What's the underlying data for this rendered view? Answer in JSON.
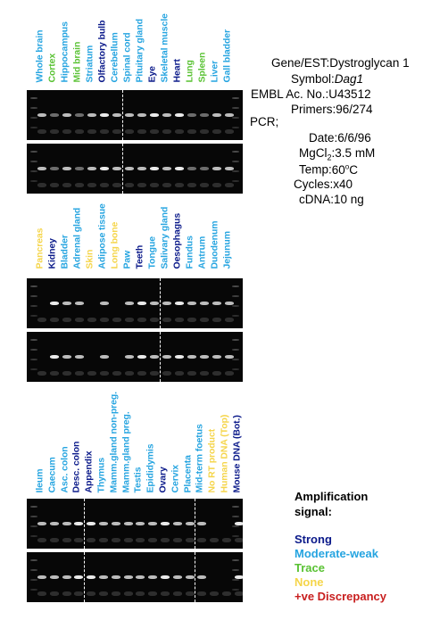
{
  "colors": {
    "strong": "#0b1a8a",
    "moderate_weak": "#25a4e0",
    "trace": "#59c233",
    "none": "#f5d54a",
    "discrepancy": "#c81e1e"
  },
  "gene_info": {
    "gene_label": "Gene/EST:",
    "gene_value": "Dystroglycan 1",
    "symbol_label": "Symbol:",
    "symbol_value": "Dag1",
    "embl_label": "EMBL Ac. No.:",
    "embl_value": "U43512",
    "primers_label": "Primers:",
    "primers_value": "96/274",
    "pcr_label": "PCR;",
    "date_label": "Date:",
    "date_value": "6/6/96",
    "mgcl_label_pre": "MgCl",
    "mgcl_label_sub": "2",
    "mgcl_label_post": ":",
    "mgcl_value": "3.5 mM",
    "temp_label": "Temp:",
    "temp_value_pre": "60",
    "temp_value_sup": "o",
    "temp_value_post": "C",
    "cycles_label": "Cycles:",
    "cycles_value": "x40",
    "cdna_label": "cDNA:",
    "cdna_value": "10 ng"
  },
  "legend": {
    "title_line1": "Amplification",
    "title_line2": "signal:",
    "strong": "Strong",
    "moderate_weak": "Moderate-weak",
    "trace": "Trace",
    "none": "None",
    "discrepancy": "+ve Discrepancy"
  },
  "panels": [
    {
      "tissues": [
        {
          "name": "Whole brain",
          "signal": "moderate_weak"
        },
        {
          "name": "Cortex",
          "signal": "trace"
        },
        {
          "name": "Hippocampus",
          "signal": "moderate_weak"
        },
        {
          "name": "Mid brain",
          "signal": "trace"
        },
        {
          "name": "Striatum",
          "signal": "moderate_weak"
        },
        {
          "name": "Olfactory bulb",
          "signal": "strong"
        },
        {
          "name": "Cerebellum",
          "signal": "moderate_weak"
        },
        {
          "name": "Spinal cord",
          "signal": "moderate_weak"
        },
        {
          "name": "Pituitary gland",
          "signal": "moderate_weak"
        },
        {
          "name": "Eye",
          "signal": "strong"
        },
        {
          "name": "Skeletal muscle",
          "signal": "moderate_weak"
        },
        {
          "name": "Heart",
          "signal": "strong"
        },
        {
          "name": "Lung",
          "signal": "trace"
        },
        {
          "name": "Spleen",
          "signal": "trace"
        },
        {
          "name": "Liver",
          "signal": "moderate_weak"
        },
        {
          "name": "Gall bladder",
          "signal": "moderate_weak"
        }
      ]
    },
    {
      "tissues": [
        {
          "name": "Pancreas",
          "signal": "none"
        },
        {
          "name": "Kidney",
          "signal": "strong"
        },
        {
          "name": "Bladder",
          "signal": "moderate_weak"
        },
        {
          "name": "Adrenal gland",
          "signal": "moderate_weak"
        },
        {
          "name": "Skin",
          "signal": "none"
        },
        {
          "name": "Adipose tissue",
          "signal": "moderate_weak"
        },
        {
          "name": "Long bone",
          "signal": "none"
        },
        {
          "name": "Paw",
          "signal": "moderate_weak"
        },
        {
          "name": "Teeth",
          "signal": "strong"
        },
        {
          "name": "Tongue",
          "signal": "moderate_weak"
        },
        {
          "name": "Salivary gland",
          "signal": "moderate_weak"
        },
        {
          "name": "Oesophagus",
          "signal": "strong"
        },
        {
          "name": "Fundus",
          "signal": "moderate_weak"
        },
        {
          "name": "Antrum",
          "signal": "moderate_weak"
        },
        {
          "name": "Duodenum",
          "signal": "moderate_weak"
        },
        {
          "name": "Jejunum",
          "signal": "moderate_weak"
        }
      ]
    },
    {
      "tissues": [
        {
          "name": "Ileum",
          "signal": "moderate_weak"
        },
        {
          "name": "Caecum",
          "signal": "moderate_weak"
        },
        {
          "name": "Asc. colon",
          "signal": "moderate_weak"
        },
        {
          "name": "Desc. colon",
          "signal": "strong"
        },
        {
          "name": "Appendix",
          "signal": "strong"
        },
        {
          "name": "Thymus",
          "signal": "moderate_weak"
        },
        {
          "name": "Mamm.gland non-preg.",
          "signal": "moderate_weak"
        },
        {
          "name": "Mamm.gland preg.",
          "signal": "moderate_weak"
        },
        {
          "name": "Testis",
          "signal": "moderate_weak"
        },
        {
          "name": "Epididymis",
          "signal": "moderate_weak"
        },
        {
          "name": "Ovary",
          "signal": "strong"
        },
        {
          "name": "Cervix",
          "signal": "moderate_weak"
        },
        {
          "name": "Placenta",
          "signal": "moderate_weak"
        },
        {
          "name": "Mid-term foetus",
          "signal": "moderate_weak"
        },
        {
          "name": "No RT product",
          "signal": "none"
        },
        {
          "name": "Human DNA (Top)",
          "signal": "none"
        },
        {
          "name": "Mouse DNA (Bot.)",
          "signal": "strong"
        }
      ]
    }
  ]
}
